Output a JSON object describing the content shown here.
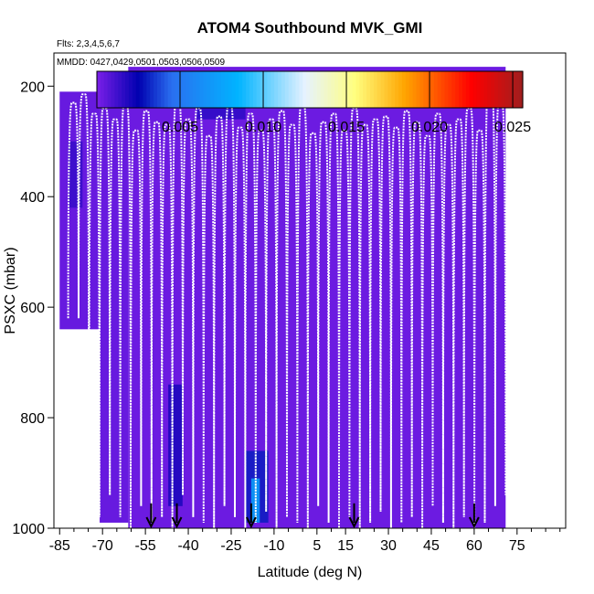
{
  "chart_data": {
    "type": "heatmap",
    "title": "ATOM4 Southbound MVK_GMI",
    "flights_label": "Flts: 2,3,4,5,6,7",
    "dates_label": "MMDD: 0427,0429,0501,0503,0506,0509",
    "xlabel": "Latitude (deg N)",
    "ylabel": "PSXC (mbar)",
    "xlim": [
      -87,
      92
    ],
    "ylim": [
      1000,
      140
    ],
    "x_ticks": [
      -85,
      -70,
      -55,
      -40,
      -25,
      -10,
      5,
      15,
      30,
      45,
      60,
      75
    ],
    "x_tick_labels": [
      "-85",
      "-70",
      "-55",
      "-40",
      "-25",
      "-10",
      "5",
      "15",
      "30",
      "45",
      "60",
      "75"
    ],
    "y_ticks": [
      200,
      400,
      600,
      800,
      1000
    ],
    "y_tick_labels": [
      "200",
      "400",
      "600",
      "800",
      "1000"
    ],
    "colorbar": {
      "min": 0,
      "max": 0.0256,
      "ticks": [
        0.005,
        0.01,
        0.015,
        0.02,
        0.025
      ],
      "tick_labels": [
        "0.005",
        "0.010",
        "0.015",
        "0.020",
        "0.025"
      ],
      "stops": [
        {
          "v": 0.0,
          "c": "#7B1FE8"
        },
        {
          "v": 0.0025,
          "c": "#0000B0"
        },
        {
          "v": 0.0045,
          "c": "#2A6FF0"
        },
        {
          "v": 0.0085,
          "c": "#00B4FF"
        },
        {
          "v": 0.0125,
          "c": "#E6F2FF"
        },
        {
          "v": 0.0155,
          "c": "#FFFF80"
        },
        {
          "v": 0.0185,
          "c": "#FFA500"
        },
        {
          "v": 0.0225,
          "c": "#FF0000"
        },
        {
          "v": 0.0256,
          "c": "#A01E1E"
        }
      ]
    },
    "background_value": 0.0003,
    "field_regions": [
      {
        "x0": -85,
        "x1": -71,
        "p_top": 210,
        "p_bot": 640,
        "value": 0.0004
      },
      {
        "x0": -71,
        "x1": -61,
        "p_top": 210,
        "p_bot": 990,
        "value": 0.0004
      },
      {
        "x0": -61,
        "x1": 71,
        "p_top": 165,
        "p_bot": 1000,
        "value": 0.0003
      }
    ],
    "anomalies": [
      {
        "x0": -82,
        "x1": -77,
        "p_top": 300,
        "p_bot": 420,
        "value": 0.0014
      },
      {
        "x0": -37,
        "x1": -20,
        "p_top": 200,
        "p_bot": 260,
        "value": 0.0016
      },
      {
        "x0": -47,
        "x1": -42,
        "p_top": 740,
        "p_bot": 960,
        "value": 0.002
      },
      {
        "x0": -20,
        "x1": -12,
        "p_top": 860,
        "p_bot": 990,
        "value": 0.003
      },
      {
        "x0": -18,
        "x1": -15,
        "p_top": 910,
        "p_bot": 990,
        "value": 0.0075
      }
    ],
    "profile_top_levels": [
      230,
      215,
      250,
      240,
      260,
      235,
      280,
      245,
      265,
      270,
      225,
      260,
      240,
      290,
      255,
      235,
      275,
      250,
      280,
      260,
      245,
      270,
      235,
      285,
      265,
      250,
      280,
      240,
      270,
      260,
      255,
      275,
      245,
      265,
      290,
      250,
      270,
      260,
      240,
      280,
      195,
      230
    ],
    "profile_bottom_levels": [
      620,
      960,
      980,
      940,
      980,
      1000,
      960,
      990,
      980,
      1000,
      940,
      980,
      990,
      1000,
      960,
      980,
      1000,
      990,
      970,
      1000,
      980,
      990,
      1000,
      960,
      990,
      1000,
      980,
      1000,
      990,
      970,
      1000,
      990,
      980,
      1000,
      960,
      990,
      1000,
      980,
      1000,
      990,
      960,
      940
    ],
    "arrow_latitudes": [
      -53,
      -44,
      -18,
      18,
      60
    ]
  }
}
